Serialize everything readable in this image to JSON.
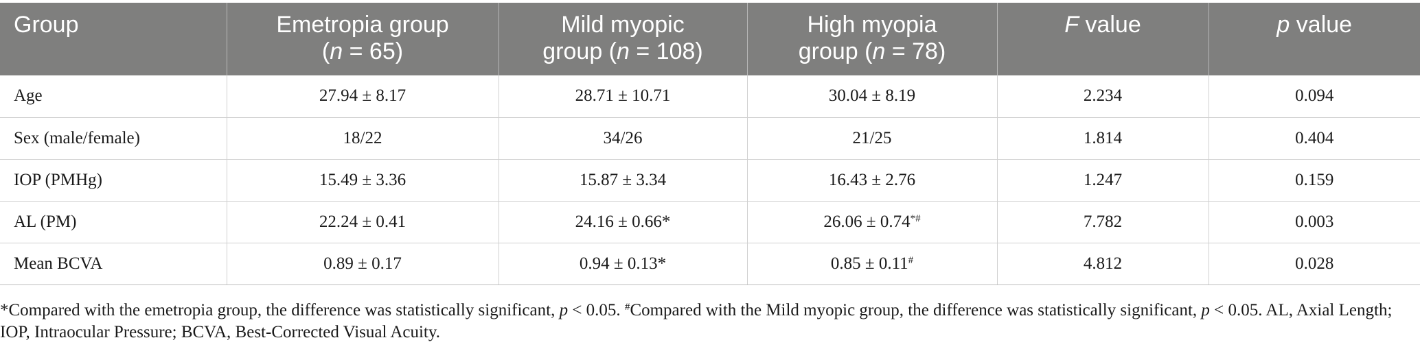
{
  "header": {
    "group": "Group",
    "emetropia_line1": "Emetropia group",
    "emetropia_n_prefix": "(",
    "emetropia_n_var": "n",
    "emetropia_n_rest": " = 65)",
    "mild_line1": "Mild myopic",
    "mild_prefix": "group (",
    "mild_n_var": "n",
    "mild_n_rest": " = 108)",
    "high_line1": "High myopia",
    "high_prefix": "group (",
    "high_n_var": "n",
    "high_n_rest": " = 78)",
    "f_var": "F",
    "f_rest": " value",
    "p_var": "p",
    "p_rest": " value"
  },
  "rows": [
    {
      "label": "Age",
      "emetropia": "27.94 ± 8.17",
      "mild": "28.71 ± 10.71",
      "mild_mark": "",
      "high": "30.04 ± 8.19",
      "high_mark": "",
      "f": "2.234",
      "p": "0.094"
    },
    {
      "label": "Sex (male/female)",
      "emetropia": "18/22",
      "mild": "34/26",
      "mild_mark": "",
      "high": "21/25",
      "high_mark": "",
      "f": "1.814",
      "p": "0.404"
    },
    {
      "label": "IOP (PMHg)",
      "emetropia": "15.49 ± 3.36",
      "mild": "15.87 ± 3.34",
      "mild_mark": "",
      "high": "16.43 ± 2.76",
      "high_mark": "",
      "f": "1.247",
      "p": "0.159"
    },
    {
      "label": "AL (PM)",
      "emetropia": "22.24 ± 0.41",
      "mild": "24.16 ± 0.66",
      "mild_mark": "*",
      "high": "26.06 ± 0.74",
      "high_mark": "*#",
      "f": "7.782",
      "p": "0.003"
    },
    {
      "label": "Mean BCVA",
      "emetropia": "0.89 ± 0.17",
      "mild": "0.94 ± 0.13",
      "mild_mark": "*",
      "high": "0.85 ± 0.11",
      "high_mark": "#",
      "f": "4.812",
      "p": "0.028"
    }
  ],
  "footnote": {
    "part1": "*Compared with the emetropia group, the difference was statistically significant, ",
    "p1_var": "p",
    "part2": " < 0.05. ",
    "hash": "#",
    "part3": "Compared with the Mild myopic group, the difference was statistically significant, ",
    "p2_var": "p",
    "part4": " < 0.05. AL, Axial Length; IOP, Intraocular Pressure; BCVA, Best-Corrected Visual Acuity."
  },
  "colors": {
    "header_bg": "#7f7f7e",
    "header_text": "#ffffff",
    "body_text": "#1a1a1a",
    "rule": "#d0d0d0"
  }
}
